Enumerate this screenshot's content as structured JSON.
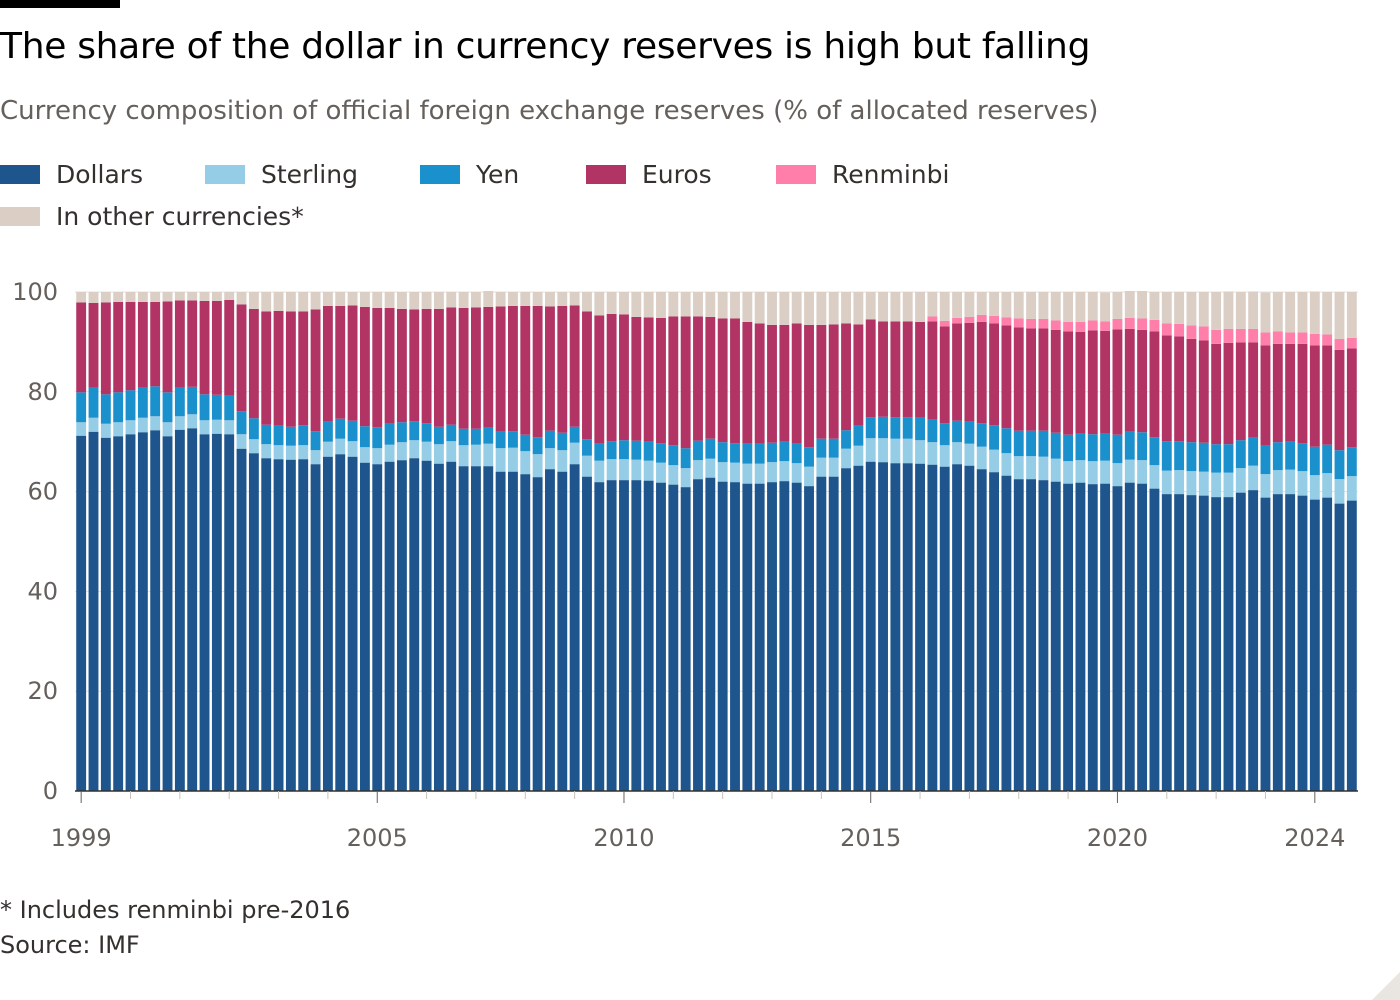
{
  "header": {
    "title": "The share of the dollar in currency reserves is high but falling",
    "subtitle": "Currency composition of official foreign exchange reserves (% of allocated reserves)"
  },
  "footer": {
    "footnote": "* Includes renminbi pre-2016",
    "source": "Source: IMF"
  },
  "legend": [
    {
      "label": "Dollars",
      "color": "#1e558c"
    },
    {
      "label": "Sterling",
      "color": "#96cde6"
    },
    {
      "label": "Yen",
      "color": "#1a90cc"
    },
    {
      "label": "Euros",
      "color": "#b13464"
    },
    {
      "label": "Renminbi",
      "color": "#ff7faa"
    },
    {
      "label": "In other currencies*",
      "color": "#dbcec5"
    }
  ],
  "chart_data": {
    "type": "bar",
    "stacked": true,
    "x_start": "1999Q1",
    "x_end": "2024Q2",
    "frequency": "quarterly",
    "x_tick_labels": [
      "1999",
      "2005",
      "2010",
      "2015",
      "2020",
      "2024"
    ],
    "y_tick_labels": [
      "0",
      "20",
      "40",
      "60",
      "80",
      "100"
    ],
    "ylim": [
      0,
      100
    ],
    "grid": true,
    "legend_position": "top-left",
    "series": [
      {
        "name": "Dollars",
        "color": "#1e558c",
        "values": [
          71.2,
          72,
          70.8,
          71.1,
          71.5,
          71.9,
          72.3,
          71.1,
          72.4,
          72.7,
          71.5,
          71.6,
          71.5,
          68.6,
          67.7,
          66.7,
          66.5,
          66.4,
          66.5,
          65.5,
          67,
          67.5,
          67,
          65.8,
          65.5,
          66,
          66.3,
          66.7,
          66.2,
          65.6,
          66,
          65.1,
          65.1,
          65.1,
          64,
          64,
          63.5,
          62.9,
          64.5,
          64,
          65.5,
          63,
          61.9,
          62.3,
          62.3,
          62.3,
          62.2,
          61.8,
          61.4,
          60.9,
          62.5,
          62.8,
          62,
          61.9,
          61.6,
          61.6,
          61.9,
          62.1,
          61.8,
          61.1,
          63,
          63,
          64.7,
          65.2,
          66,
          65.9,
          65.7,
          65.7,
          65.6,
          65.4,
          65,
          65.5,
          65.2,
          64.5,
          63.9,
          63.2,
          62.5,
          62.5,
          62.3,
          62,
          61.6,
          61.8,
          61.5,
          61.6,
          61.1,
          61.8,
          61.6,
          60.6,
          59.5,
          59.5,
          59.3,
          59.2,
          58.9,
          58.9,
          59.8,
          60.3,
          58.8,
          59.5,
          59.5,
          59.2,
          58.4,
          58.8,
          57.6,
          58.2
        ]
      },
      {
        "name": "Sterling",
        "color": "#96cde6",
        "values": [
          2.7,
          2.8,
          2.8,
          2.8,
          2.8,
          2.9,
          2.8,
          2.8,
          2.7,
          2.8,
          2.8,
          2.8,
          2.8,
          2.9,
          2.8,
          2.8,
          2.8,
          2.8,
          2.8,
          2.8,
          3.0,
          3.1,
          3.1,
          3.1,
          3.2,
          3.4,
          3.6,
          3.6,
          3.8,
          3.9,
          4.1,
          4.2,
          4.3,
          4.5,
          4.7,
          4.8,
          4.6,
          4.6,
          4.2,
          4.3,
          4.3,
          4.2,
          4.3,
          4.2,
          4.2,
          4.1,
          4.0,
          4.0,
          3.9,
          3.8,
          3.8,
          3.8,
          3.9,
          3.9,
          4.0,
          4.0,
          4.0,
          4.0,
          3.9,
          3.9,
          3.8,
          3.8,
          3.9,
          4.0,
          4.7,
          4.8,
          4.9,
          4.9,
          4.7,
          4.5,
          4.3,
          4.4,
          4.4,
          4.5,
          4.5,
          4.5,
          4.6,
          4.6,
          4.7,
          4.6,
          4.5,
          4.5,
          4.6,
          4.6,
          4.6,
          4.6,
          4.7,
          4.7,
          4.7,
          4.8,
          4.8,
          4.8,
          4.9,
          4.9,
          4.9,
          4.9,
          4.7,
          4.8,
          4.9,
          4.9,
          4.9,
          4.9,
          4.9,
          4.9
        ]
      },
      {
        "name": "Yen",
        "color": "#1a90cc",
        "values": [
          6.0,
          6.0,
          5.9,
          6.0,
          6.0,
          6.0,
          6.0,
          6.0,
          5.7,
          5.5,
          5.2,
          5.0,
          4.9,
          4.6,
          4.2,
          3.9,
          3.9,
          3.8,
          4.0,
          3.8,
          4.0,
          4.0,
          4.1,
          4.2,
          4.2,
          4.2,
          4.0,
          3.8,
          3.7,
          3.5,
          3.3,
          3.3,
          3.2,
          3.2,
          3.3,
          3.3,
          3.3,
          3.4,
          3.5,
          3.5,
          3.2,
          3.3,
          3.4,
          3.6,
          3.8,
          3.8,
          3.8,
          3.9,
          4.0,
          4.0,
          3.9,
          4.0,
          4.0,
          3.9,
          4.0,
          4.0,
          3.9,
          3.9,
          3.9,
          3.9,
          3.8,
          3.8,
          3.7,
          4.0,
          4.2,
          4.3,
          4.3,
          4.3,
          4.5,
          4.5,
          4.4,
          4.3,
          4.4,
          4.7,
          4.9,
          5.0,
          5.1,
          5.1,
          5.2,
          5.2,
          5.3,
          5.3,
          5.4,
          5.4,
          5.7,
          5.6,
          5.6,
          5.6,
          5.9,
          5.8,
          5.8,
          5.8,
          5.7,
          5.7,
          5.6,
          5.6,
          5.7,
          5.6,
          5.6,
          5.6,
          5.7,
          5.7,
          5.8,
          5.8
        ]
      },
      {
        "name": "Euros",
        "color": "#b13464",
        "values": [
          18.0,
          17.0,
          18.4,
          18.1,
          17.7,
          17.2,
          16.9,
          18.2,
          17.5,
          17.3,
          18.7,
          18.8,
          19.2,
          21.4,
          21.9,
          22.7,
          23,
          23.1,
          22.8,
          24.4,
          23.2,
          22.6,
          23.1,
          23.9,
          23.9,
          23.2,
          22.7,
          22.4,
          22.9,
          23.6,
          23.5,
          24.2,
          24.3,
          24.2,
          25.1,
          25.1,
          25.8,
          26.3,
          24.9,
          25.4,
          24.3,
          25.6,
          25.7,
          25.5,
          25.2,
          24.8,
          24.9,
          25.1,
          25.8,
          26.4,
          24.9,
          24.4,
          24.8,
          25,
          24.4,
          24.1,
          23.6,
          23.4,
          24.1,
          24.5,
          22.8,
          22.9,
          21.4,
          20.3,
          19.6,
          19.1,
          19.2,
          19.2,
          19.2,
          19.7,
          19.4,
          19.5,
          19.8,
          20.3,
          20.4,
          20.6,
          20.7,
          20.5,
          20.5,
          20.6,
          20.7,
          20.4,
          20.8,
          20.6,
          21.1,
          20.6,
          20.5,
          21.2,
          21.2,
          21.0,
          20.7,
          20.5,
          20.1,
          20.3,
          19.6,
          19.1,
          20.1,
          19.7,
          19.6,
          19.9,
          20.3,
          19.9,
          20.1,
          19.8
        ]
      },
      {
        "name": "Renminbi",
        "color": "#ff7faa",
        "values": [
          0,
          0,
          0,
          0,
          0,
          0,
          0,
          0,
          0,
          0,
          0,
          0,
          0,
          0,
          0,
          0,
          0,
          0,
          0,
          0,
          0,
          0,
          0,
          0,
          0,
          0,
          0,
          0,
          0,
          0,
          0,
          0,
          0,
          0,
          0,
          0,
          0,
          0,
          0,
          0,
          0,
          0,
          0,
          0,
          0,
          0,
          0,
          0,
          0,
          0,
          0,
          0,
          0,
          0,
          0,
          0,
          0,
          0,
          0,
          0,
          0,
          0,
          0,
          0,
          0,
          0,
          0,
          0,
          0,
          1.0,
          1.1,
          1.1,
          1.2,
          1.4,
          1.5,
          1.6,
          1.8,
          1.9,
          1.9,
          1.9,
          1.9,
          2.0,
          2.0,
          1.9,
          2.1,
          2.2,
          2.3,
          2.3,
          2.4,
          2.5,
          2.7,
          2.8,
          2.8,
          2.8,
          2.7,
          2.7,
          2.6,
          2.5,
          2.3,
          2.3,
          2.3,
          2.2,
          2.2,
          2.1
        ]
      },
      {
        "name": "In other currencies*",
        "color": "#dbcec5",
        "values": [
          2.1,
          2.2,
          2.1,
          2.0,
          2.0,
          2.0,
          2.0,
          1.9,
          1.7,
          1.7,
          1.8,
          1.8,
          1.6,
          2.5,
          3.4,
          3.9,
          3.8,
          3.9,
          3.9,
          3.5,
          2.8,
          2.8,
          2.7,
          3.0,
          3.2,
          3.2,
          3.4,
          3.5,
          3.4,
          3.4,
          3.1,
          3.2,
          3.1,
          3.2,
          2.9,
          2.8,
          2.8,
          2.8,
          2.9,
          2.8,
          2.7,
          3.9,
          4.7,
          4.4,
          4.5,
          5.0,
          5.1,
          5.2,
          4.9,
          4.9,
          4.9,
          5.0,
          5.3,
          5.3,
          6.0,
          6.3,
          6.6,
          6.6,
          6.3,
          6.6,
          6.6,
          6.5,
          6.3,
          6.5,
          5.5,
          5.9,
          5.9,
          5.9,
          6.0,
          4.9,
          5.8,
          5.2,
          5.0,
          4.6,
          4.8,
          5.1,
          5.3,
          5.4,
          5.4,
          5.7,
          6.0,
          6.0,
          5.7,
          5.8,
          5.4,
          5.4,
          5.5,
          5.6,
          6.3,
          6.4,
          6.7,
          6.9,
          7.6,
          7.5,
          7.4,
          7.5,
          8.0,
          7.9,
          8.1,
          8.1,
          8.5,
          8.5,
          9.4,
          9.2
        ]
      }
    ]
  }
}
